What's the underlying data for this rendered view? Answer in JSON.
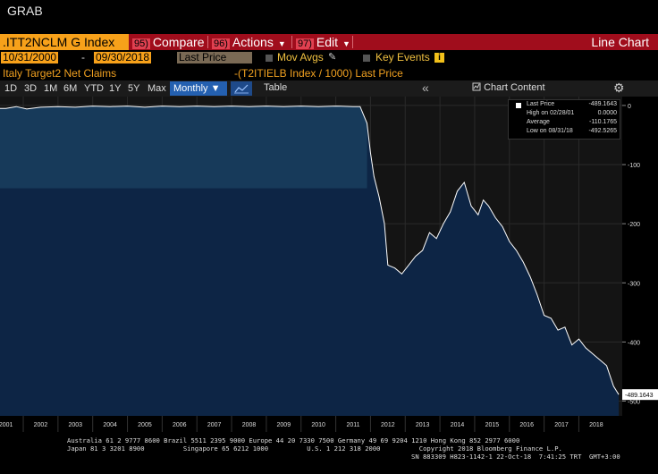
{
  "window": {
    "title": "GRAB"
  },
  "menubar": {
    "ticker": ".ITT2NCLM G Index",
    "items": [
      {
        "num": "95)",
        "label": "Compare"
      },
      {
        "num": "96)",
        "label": "Actions"
      },
      {
        "num": "97)",
        "label": "Edit"
      }
    ],
    "chart_type": "Line Chart"
  },
  "controls": {
    "start_date": "10/31/2000",
    "end_date": "09/30/2018",
    "date_separator": "-",
    "series": "Last Price",
    "mov_avgs": "Mov Avgs",
    "key_events": "Key Events",
    "info_icon": "i"
  },
  "security": {
    "title": "Italy Target2 Net Claims",
    "formula": "-(T2ITIELB Index / 1000) Last Price"
  },
  "toolbar": {
    "periods": [
      "1D",
      "3D",
      "1M",
      "6M",
      "YTD",
      "1Y",
      "5Y",
      "Max"
    ],
    "frequency": "Monthly",
    "table_label": "Table",
    "chart_content_label": "Chart Content",
    "collapse_glyph": "«",
    "gear_glyph": "⚙",
    "pencil_glyph": "✎"
  },
  "legend": {
    "rows": [
      {
        "label": "Last Price",
        "value": "-489.1643"
      },
      {
        "label": "High on 02/28/01",
        "value": "0.0000"
      },
      {
        "label": "Average",
        "value": "-110.1765"
      },
      {
        "label": "Low on 08/31/18",
        "value": "-492.5265"
      }
    ]
  },
  "colors": {
    "menubar": "#a00d1c",
    "ticker_bg": "#f7a11a",
    "area_fill": "#0d2545",
    "area_fill_light": "#173a5a",
    "line": "#ffffff",
    "plot_bg": "#141414"
  },
  "chart_data": {
    "type": "area",
    "x": [
      2001,
      2001.3,
      2001.6,
      2002,
      2002.5,
      2003,
      2003.5,
      2004,
      2004.5,
      2005,
      2005.5,
      2006,
      2006.5,
      2007,
      2007.5,
      2008,
      2008.5,
      2009,
      2009.5,
      2010,
      2010.5,
      2011,
      2011.2,
      2011.4,
      2011.5,
      2011.6,
      2011.75,
      2011.9,
      2012.0,
      2012.2,
      2012.4,
      2012.6,
      2012.8,
      2013.0,
      2013.2,
      2013.4,
      2013.6,
      2013.8,
      2014.0,
      2014.2,
      2014.4,
      2014.6,
      2014.75,
      2014.9,
      2015.1,
      2015.3,
      2015.5,
      2015.7,
      2015.9,
      2016.1,
      2016.3,
      2016.5,
      2016.7,
      2016.9,
      2017.1,
      2017.3,
      2017.5,
      2017.7,
      2017.9,
      2018.1,
      2018.3,
      2018.5,
      2018.65
    ],
    "values": [
      -5,
      -2,
      -6,
      -3,
      -2,
      -3,
      -1,
      -2,
      -1,
      -3,
      -1,
      -2,
      -1,
      -2,
      -1,
      -2,
      -1,
      -2,
      -1,
      -2,
      -1,
      -2,
      -2,
      -30,
      -80,
      -120,
      -155,
      -200,
      -270,
      -275,
      -285,
      -270,
      -255,
      -245,
      -215,
      -225,
      -200,
      -180,
      -145,
      -130,
      -170,
      -185,
      -160,
      -170,
      -190,
      -205,
      -230,
      -245,
      -265,
      -290,
      -320,
      -355,
      -360,
      -380,
      -375,
      -405,
      -395,
      -410,
      -420,
      -430,
      -440,
      -475,
      -489
    ],
    "xlim": [
      2000.83,
      2018.75
    ],
    "ylim": [
      -525,
      15
    ],
    "x_ticks": [
      2001,
      2002,
      2003,
      2004,
      2005,
      2006,
      2007,
      2008,
      2009,
      2010,
      2011,
      2012,
      2013,
      2014,
      2015,
      2016,
      2017,
      2018
    ],
    "y_ticks": [
      0,
      -100,
      -200,
      -300,
      -400,
      -500
    ],
    "y_tick_labels": [
      "0",
      "-100",
      "-200",
      "-300",
      "-400",
      "-500"
    ],
    "last_value_label": "-489.1643",
    "grid": true,
    "legend_position": "top-right"
  },
  "footer": {
    "line1": "Australia 61 2 9777 8600 Brazil 5511 2395 9000 Europe 44 20 7330 7500 Germany 49 69 9204 1210 Hong Kong 852 2977 6000",
    "line2": "Japan 81 3 3201 8900          Singapore 65 6212 1000          U.S. 1 212 318 2000          Copyright 2018 Bloomberg Finance L.P.",
    "line3": "SN 883309 H823-1142-1 22-Oct-18  7:41:25 TRT  GMT+3:00"
  }
}
